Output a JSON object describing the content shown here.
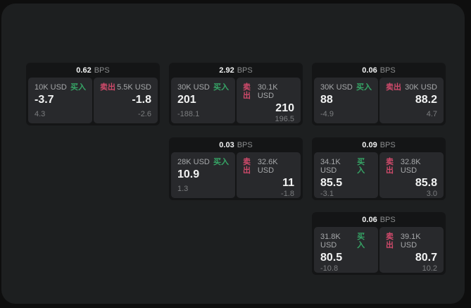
{
  "labels": {
    "buy": "买入",
    "sell": "卖出",
    "bps": "BPS"
  },
  "colors": {
    "background": "#0e0e0e",
    "panel": "#1d1f20",
    "card": "#141516",
    "tile": "#28292c",
    "text_primary": "#f2f3f3",
    "text_secondary": "#a6a8aa",
    "text_muted": "#7b7d7f",
    "buy_green": "#36a566",
    "sell_red": "#d04a6b"
  },
  "cards": [
    {
      "row": 1,
      "col": 1,
      "bps": "0.62",
      "buy": {
        "amount": "10K USD",
        "value": "-3.7",
        "delta": "4.3"
      },
      "sell": {
        "amount": "5.5K USD",
        "value": "-1.8",
        "delta": "-2.6"
      }
    },
    {
      "row": 1,
      "col": 2,
      "bps": "2.92",
      "buy": {
        "amount": "30K USD",
        "value": "201",
        "delta": "-188.1"
      },
      "sell": {
        "amount": "30.1K USD",
        "value": "210",
        "delta": "196.5"
      }
    },
    {
      "row": 1,
      "col": 3,
      "bps": "0.06",
      "buy": {
        "amount": "30K USD",
        "value": "88",
        "delta": "-4.9"
      },
      "sell": {
        "amount": "30K USD",
        "value": "88.2",
        "delta": "4.7"
      }
    },
    {
      "row": 2,
      "col": 2,
      "bps": "0.03",
      "buy": {
        "amount": "28K USD",
        "value": "10.9",
        "delta": "1.3"
      },
      "sell": {
        "amount": "32.6K USD",
        "value": "11",
        "delta": "-1.8"
      }
    },
    {
      "row": 2,
      "col": 3,
      "bps": "0.09",
      "buy": {
        "amount": "34.1K USD",
        "value": "85.5",
        "delta": "-3.1"
      },
      "sell": {
        "amount": "32.8K USD",
        "value": "85.8",
        "delta": "3.0"
      }
    },
    {
      "row": 3,
      "col": 3,
      "bps": "0.06",
      "buy": {
        "amount": "31.8K USD",
        "value": "80.5",
        "delta": "-10.8"
      },
      "sell": {
        "amount": "39.1K USD",
        "value": "80.7",
        "delta": "10.2"
      }
    }
  ]
}
